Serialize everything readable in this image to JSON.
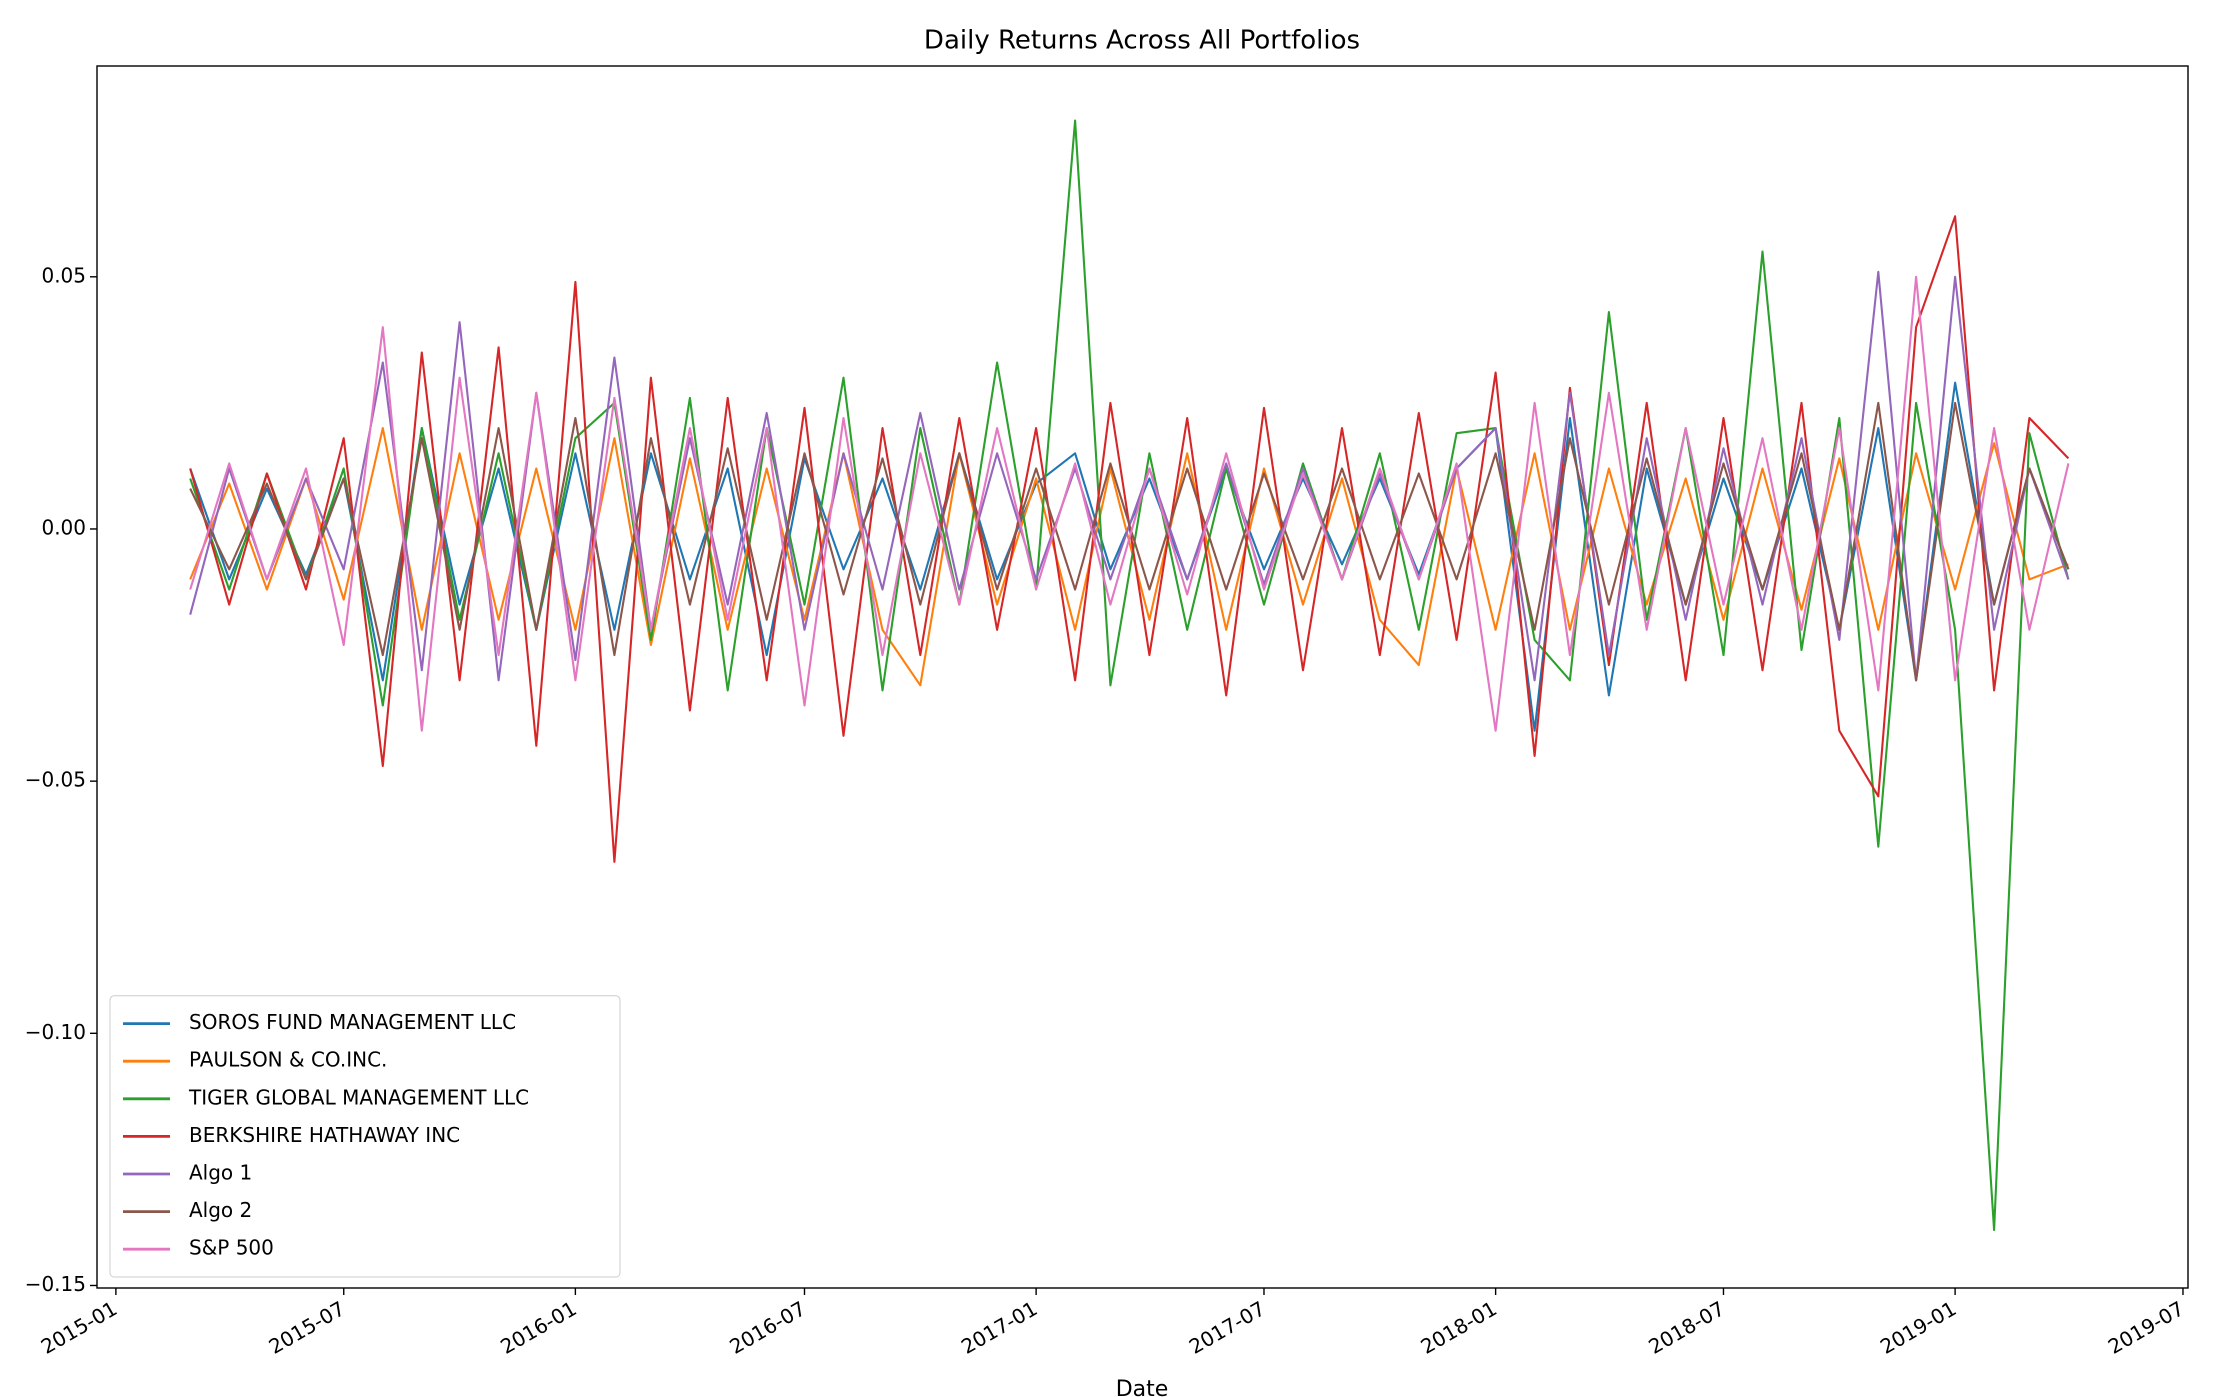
{
  "chart_data": {
    "type": "line",
    "title": "Daily Returns Across All Portfolios",
    "x_label": "Date",
    "x": [
      "2015-03",
      "2015-04",
      "2015-05",
      "2015-06",
      "2015-07",
      "2015-08",
      "2015-09",
      "2015-10",
      "2015-11",
      "2015-12",
      "2016-01",
      "2016-02",
      "2016-03",
      "2016-04",
      "2016-05",
      "2016-06",
      "2016-07",
      "2016-08",
      "2016-09",
      "2016-10",
      "2016-11",
      "2016-12",
      "2017-01",
      "2017-02",
      "2017-03",
      "2017-04",
      "2017-05",
      "2017-06",
      "2017-07",
      "2017-08",
      "2017-09",
      "2017-10",
      "2017-11",
      "2017-12",
      "2018-01",
      "2018-02",
      "2018-03",
      "2018-04",
      "2018-05",
      "2018-06",
      "2018-07",
      "2018-08",
      "2018-09",
      "2018-10",
      "2018-11",
      "2018-12",
      "2019-01",
      "2019-02",
      "2019-03",
      "2019-04"
    ],
    "series": [
      {
        "name": "SOROS FUND MANAGEMENT LLC",
        "color": "#1f77b4",
        "values": [
          0.012,
          -0.01,
          0.008,
          -0.009,
          0.01,
          -0.03,
          0.02,
          -0.015,
          0.012,
          -0.02,
          0.015,
          -0.02,
          0.015,
          -0.01,
          0.012,
          -0.025,
          0.014,
          -0.008,
          0.01,
          -0.012,
          0.015,
          -0.01,
          0.009,
          0.015,
          -0.008,
          0.01,
          -0.01,
          0.012,
          -0.008,
          0.01,
          -0.007,
          0.01,
          -0.009,
          0.012,
          0.02,
          -0.04,
          0.022,
          -0.033,
          0.012,
          -0.015,
          0.01,
          -0.012,
          0.012,
          -0.02,
          0.02,
          -0.03,
          0.029,
          -0.015,
          0.012,
          -0.008
        ]
      },
      {
        "name": "PAULSON & CO.INC.",
        "color": "#ff7f0e",
        "values": [
          -0.01,
          0.009,
          -0.012,
          0.01,
          -0.014,
          0.02,
          -0.02,
          0.015,
          -0.018,
          0.012,
          -0.02,
          0.018,
          -0.023,
          0.014,
          -0.02,
          0.012,
          -0.018,
          0.015,
          -0.02,
          -0.031,
          0.015,
          -0.015,
          0.01,
          -0.02,
          0.012,
          -0.018,
          0.015,
          -0.02,
          0.012,
          -0.015,
          0.01,
          -0.018,
          -0.027,
          0.012,
          -0.02,
          0.015,
          -0.02,
          0.012,
          -0.015,
          0.01,
          -0.018,
          0.012,
          -0.016,
          0.014,
          -0.02,
          0.015,
          -0.012,
          0.017,
          -0.01,
          -0.007
        ]
      },
      {
        "name": "TIGER GLOBAL MANAGEMENT LLC",
        "color": "#2ca02c",
        "values": [
          0.01,
          -0.012,
          0.011,
          -0.01,
          0.012,
          -0.035,
          0.02,
          -0.018,
          0.015,
          -0.02,
          0.018,
          0.025,
          -0.022,
          0.026,
          -0.032,
          0.02,
          -0.015,
          0.03,
          -0.032,
          0.02,
          -0.015,
          0.033,
          -0.012,
          0.081,
          -0.031,
          0.015,
          -0.02,
          0.012,
          -0.015,
          0.013,
          -0.01,
          0.015,
          -0.02,
          0.019,
          0.02,
          -0.022,
          -0.03,
          0.043,
          -0.018,
          0.02,
          -0.025,
          0.055,
          -0.024,
          0.022,
          -0.063,
          0.025,
          -0.02,
          -0.139,
          0.019,
          -0.01
        ]
      },
      {
        "name": "BERKSHIRE HATHAWAY INC",
        "color": "#d62728",
        "values": [
          0.012,
          -0.015,
          0.011,
          -0.012,
          0.018,
          -0.047,
          0.035,
          -0.03,
          0.036,
          -0.043,
          0.049,
          -0.066,
          0.03,
          -0.036,
          0.026,
          -0.03,
          0.024,
          -0.041,
          0.02,
          -0.025,
          0.022,
          -0.02,
          0.02,
          -0.03,
          0.025,
          -0.025,
          0.022,
          -0.033,
          0.024,
          -0.028,
          0.02,
          -0.025,
          0.023,
          -0.022,
          0.031,
          -0.045,
          0.028,
          -0.027,
          0.025,
          -0.03,
          0.022,
          -0.028,
          0.025,
          -0.04,
          -0.053,
          0.04,
          0.062,
          -0.032,
          0.022,
          0.014
        ]
      },
      {
        "name": "Algo 1",
        "color": "#9467bd",
        "values": [
          -0.017,
          0.012,
          -0.01,
          0.01,
          -0.008,
          0.033,
          -0.028,
          0.041,
          -0.03,
          0.027,
          -0.026,
          0.034,
          -0.02,
          0.018,
          -0.015,
          0.023,
          -0.02,
          0.015,
          -0.012,
          0.023,
          -0.012,
          0.015,
          -0.01,
          0.012,
          -0.01,
          0.012,
          -0.01,
          0.013,
          -0.011,
          0.012,
          -0.01,
          0.011,
          -0.01,
          0.012,
          0.02,
          -0.03,
          0.027,
          -0.025,
          0.018,
          -0.018,
          0.016,
          -0.015,
          0.018,
          -0.022,
          0.051,
          -0.03,
          0.05,
          -0.02,
          0.012,
          -0.01
        ]
      },
      {
        "name": "Algo 2",
        "color": "#8c564b",
        "values": [
          0.008,
          -0.008,
          0.009,
          -0.01,
          0.01,
          -0.025,
          0.018,
          -0.02,
          0.02,
          -0.02,
          0.022,
          -0.025,
          0.018,
          -0.015,
          0.016,
          -0.018,
          0.015,
          -0.013,
          0.014,
          -0.015,
          0.015,
          -0.012,
          0.012,
          -0.012,
          0.013,
          -0.012,
          0.012,
          -0.012,
          0.011,
          -0.01,
          0.012,
          -0.01,
          0.011,
          -0.01,
          0.015,
          -0.02,
          0.018,
          -0.015,
          0.014,
          -0.015,
          0.013,
          -0.012,
          0.015,
          -0.02,
          0.025,
          -0.03,
          0.025,
          -0.015,
          0.012,
          -0.008
        ]
      },
      {
        "name": "S&P 500",
        "color": "#e377c2",
        "values": [
          -0.012,
          0.013,
          -0.01,
          0.012,
          -0.023,
          0.04,
          -0.04,
          0.03,
          -0.025,
          0.027,
          -0.03,
          0.026,
          -0.02,
          0.02,
          -0.018,
          0.02,
          -0.035,
          0.022,
          -0.025,
          0.015,
          -0.015,
          0.02,
          -0.012,
          0.013,
          -0.015,
          0.012,
          -0.013,
          0.015,
          -0.012,
          0.011,
          -0.01,
          0.012,
          -0.01,
          0.013,
          -0.04,
          0.025,
          -0.025,
          0.027,
          -0.02,
          0.02,
          -0.015,
          0.018,
          -0.02,
          0.02,
          -0.032,
          0.05,
          -0.03,
          0.02,
          -0.02,
          0.013
        ]
      }
    ],
    "xlim": [
      "2014-12-17",
      "2019-07-05"
    ],
    "xticks": [
      "2015-01",
      "2015-07",
      "2016-01",
      "2016-07",
      "2017-01",
      "2017-07",
      "2018-01",
      "2018-07",
      "2019-01",
      "2019-07"
    ],
    "ylim": [
      -0.1505,
      0.0918
    ],
    "yticks": [
      {
        "value": -0.15,
        "label": "−0.15"
      },
      {
        "value": -0.1,
        "label": "−0.10"
      },
      {
        "value": -0.05,
        "label": "−0.05"
      },
      {
        "value": 0,
        "label": "0.00"
      },
      {
        "value": 0.05,
        "label": "0.05"
      }
    ],
    "legend": "lower left",
    "grid": false
  }
}
